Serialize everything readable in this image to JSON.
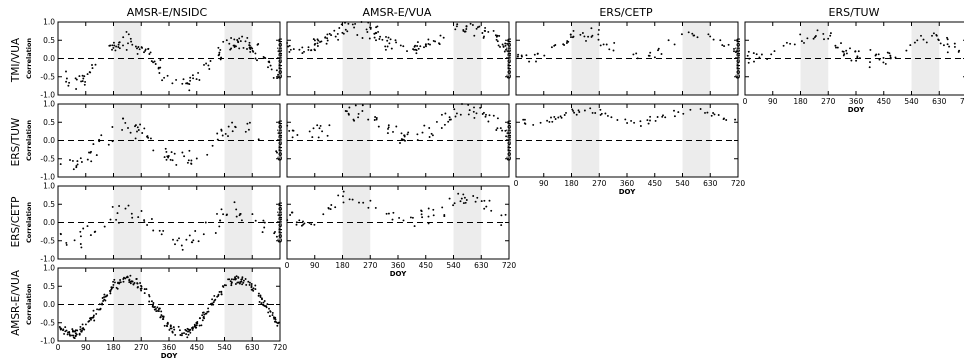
{
  "column_titles": [
    "AMSR-E/NSIDC",
    "AMSR-E/VUA",
    "ERS/CETP",
    "ERS/TUW"
  ],
  "row_labels": [
    "TMI/VUA",
    "ERS/TUW",
    "ERS/CETP",
    "AMSR-E/VUA"
  ],
  "colors": {
    "shade": "#ececec",
    "points": "#000000",
    "axes": "#000000"
  },
  "chart_data": {
    "type": "scatter",
    "layout": "lower-triangular grid of correlation panels (rows x columns)",
    "x_axis": {
      "label": "DOY",
      "range": [
        0,
        720
      ],
      "ticks": [
        "0",
        "90",
        "180",
        "270",
        "360",
        "450",
        "540",
        "630",
        "720"
      ]
    },
    "y_axis": {
      "label": "Correlation",
      "range": [
        -1.0,
        1.0
      ],
      "ticks": [
        "-1.0",
        "-0.5",
        "0.0",
        "0.5",
        "1.0"
      ]
    },
    "reference_line": {
      "y": 0,
      "style": "dashed"
    },
    "shaded_x_ranges": [
      [
        180,
        270
      ],
      [
        540,
        630
      ]
    ],
    "panels": [
      {
        "row": "TMI/VUA",
        "column": "AMSR-E/NSIDC",
        "base": -0.1,
        "amplitude": 0.55,
        "noise": 0.35,
        "n": 150,
        "coverage": [
          [
            0,
            720
          ]
        ]
      },
      {
        "row": "TMI/VUA",
        "column": "AMSR-E/VUA",
        "base": 0.55,
        "amplitude": 0.3,
        "noise": 0.3,
        "n": 150,
        "coverage": [
          [
            0,
            720
          ]
        ]
      },
      {
        "row": "TMI/VUA",
        "column": "ERS/CETP",
        "base": 0.35,
        "amplitude": 0.3,
        "noise": 0.25,
        "n": 70,
        "coverage": [
          [
            0,
            720
          ]
        ]
      },
      {
        "row": "TMI/VUA",
        "column": "ERS/TUW",
        "base": 0.3,
        "amplitude": 0.3,
        "noise": 0.35,
        "n": 90,
        "coverage": [
          [
            0,
            720
          ]
        ]
      },
      {
        "row": "ERS/TUW",
        "column": "AMSR-E/NSIDC",
        "base": -0.1,
        "amplitude": 0.5,
        "noise": 0.4,
        "n": 85,
        "coverage": [
          [
            0,
            720
          ]
        ]
      },
      {
        "row": "ERS/TUW",
        "column": "AMSR-E/VUA",
        "base": 0.45,
        "amplitude": 0.35,
        "noise": 0.35,
        "n": 95,
        "coverage": [
          [
            0,
            720
          ]
        ]
      },
      {
        "row": "ERS/TUW",
        "column": "ERS/CETP",
        "base": 0.65,
        "amplitude": 0.15,
        "noise": 0.15,
        "n": 65,
        "coverage": [
          [
            0,
            720
          ]
        ]
      },
      {
        "row": "ERS/CETP",
        "column": "AMSR-E/NSIDC",
        "base": -0.1,
        "amplitude": 0.4,
        "noise": 0.4,
        "n": 75,
        "coverage": [
          [
            0,
            720
          ]
        ]
      },
      {
        "row": "ERS/CETP",
        "column": "AMSR-E/VUA",
        "base": 0.35,
        "amplitude": 0.3,
        "noise": 0.35,
        "n": 75,
        "coverage": [
          [
            0,
            720
          ]
        ]
      },
      {
        "row": "AMSR-E/VUA",
        "column": "AMSR-E/NSIDC",
        "base": -0.05,
        "amplitude": 0.75,
        "noise": 0.22,
        "n": 320,
        "coverage": [
          [
            0,
            720
          ]
        ]
      }
    ]
  }
}
